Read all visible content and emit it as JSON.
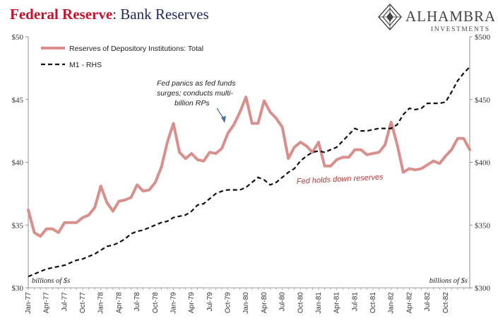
{
  "header": {
    "title_bold": "Federal Reserve",
    "title_rest": ": Bank Reserves",
    "logo_name": "ALHAMBRA",
    "logo_sub": "INVESTMENTS"
  },
  "colors": {
    "reserves": "#d9908c",
    "m1": "#111111",
    "title_red": "#c8102e",
    "title_navy": "#1f2a5c",
    "annotation_red": "#b03a3a"
  },
  "chart_data": {
    "type": "line",
    "title": "Federal Reserve: Bank Reserves",
    "x_tick_labels": [
      "Jan-77",
      "Apr-77",
      "Jul-77",
      "Oct-77",
      "Jan-78",
      "Apr-78",
      "Jul-78",
      "Oct-78",
      "Jan-79",
      "Apr-79",
      "Jul-79",
      "Oct-79",
      "Jan-80",
      "Apr-80",
      "Jul-80",
      "Oct-80",
      "Jan-81",
      "Apr-81",
      "Jul-81",
      "Oct-81",
      "Jan-82",
      "Apr-82",
      "Jul-82",
      "Oct-82"
    ],
    "y_left": {
      "range": [
        30,
        50
      ],
      "ticks": [
        "$30",
        "$35",
        "$40",
        "$45",
        "$50"
      ],
      "unit_label": "billions of $s"
    },
    "y_right": {
      "range": [
        300,
        500
      ],
      "ticks": [
        "$300",
        "$350",
        "$400",
        "$450",
        "$500"
      ],
      "unit_label": "billions of $s"
    },
    "grid": false,
    "legend_position": "top-left",
    "series": [
      {
        "name": "Reserves of Depository Institutions: Total",
        "axis": "left",
        "style": "solid",
        "values": [
          36.2,
          34.4,
          34.1,
          34.7,
          34.7,
          34.4,
          35.2,
          35.2,
          35.2,
          35.6,
          35.8,
          36.4,
          38.1,
          36.8,
          36.1,
          36.9,
          37.0,
          37.2,
          38.2,
          37.7,
          37.8,
          38.4,
          39.6,
          41.6,
          43.1,
          40.8,
          40.3,
          40.7,
          40.2,
          40.1,
          40.8,
          40.7,
          41.1,
          42.3,
          43.0,
          44.0,
          45.2,
          43.1,
          43.1,
          44.9,
          44.0,
          43.5,
          42.8,
          40.3,
          41.2,
          41.6,
          41.3,
          40.8,
          41.6,
          39.7,
          39.7,
          40.2,
          40.4,
          40.4,
          41.0,
          41.0,
          40.6,
          40.7,
          40.8,
          41.4,
          43.2,
          41.4,
          39.2,
          39.5,
          39.4,
          39.5,
          39.8,
          40.1,
          39.9,
          40.5,
          41.0,
          41.9,
          41.9,
          41.0
        ]
      },
      {
        "name": "M1 - RHS",
        "axis": "right",
        "style": "dashed",
        "values": [
          309,
          311,
          313,
          315,
          316,
          317,
          318,
          320,
          322,
          323,
          325,
          327,
          330,
          333,
          334,
          336,
          339,
          343,
          345,
          346,
          348,
          350,
          352,
          353,
          356,
          357,
          358,
          361,
          366,
          367,
          371,
          375,
          377,
          378,
          378,
          378,
          380,
          384,
          388,
          386,
          382,
          384,
          388,
          392,
          395,
          401,
          405,
          408,
          409,
          408,
          410,
          412,
          417,
          422,
          427,
          425,
          425,
          426,
          427,
          427,
          427,
          430,
          438,
          443,
          442,
          443,
          447,
          447,
          447,
          448,
          456,
          465,
          471,
          476
        ]
      }
    ],
    "annotations": [
      {
        "lines": [
          "Fed panics as fed funds",
          "surges; conducts multi-",
          "billion RPs"
        ]
      },
      {
        "lines": [
          "Fed holds down reserves"
        ]
      }
    ]
  }
}
